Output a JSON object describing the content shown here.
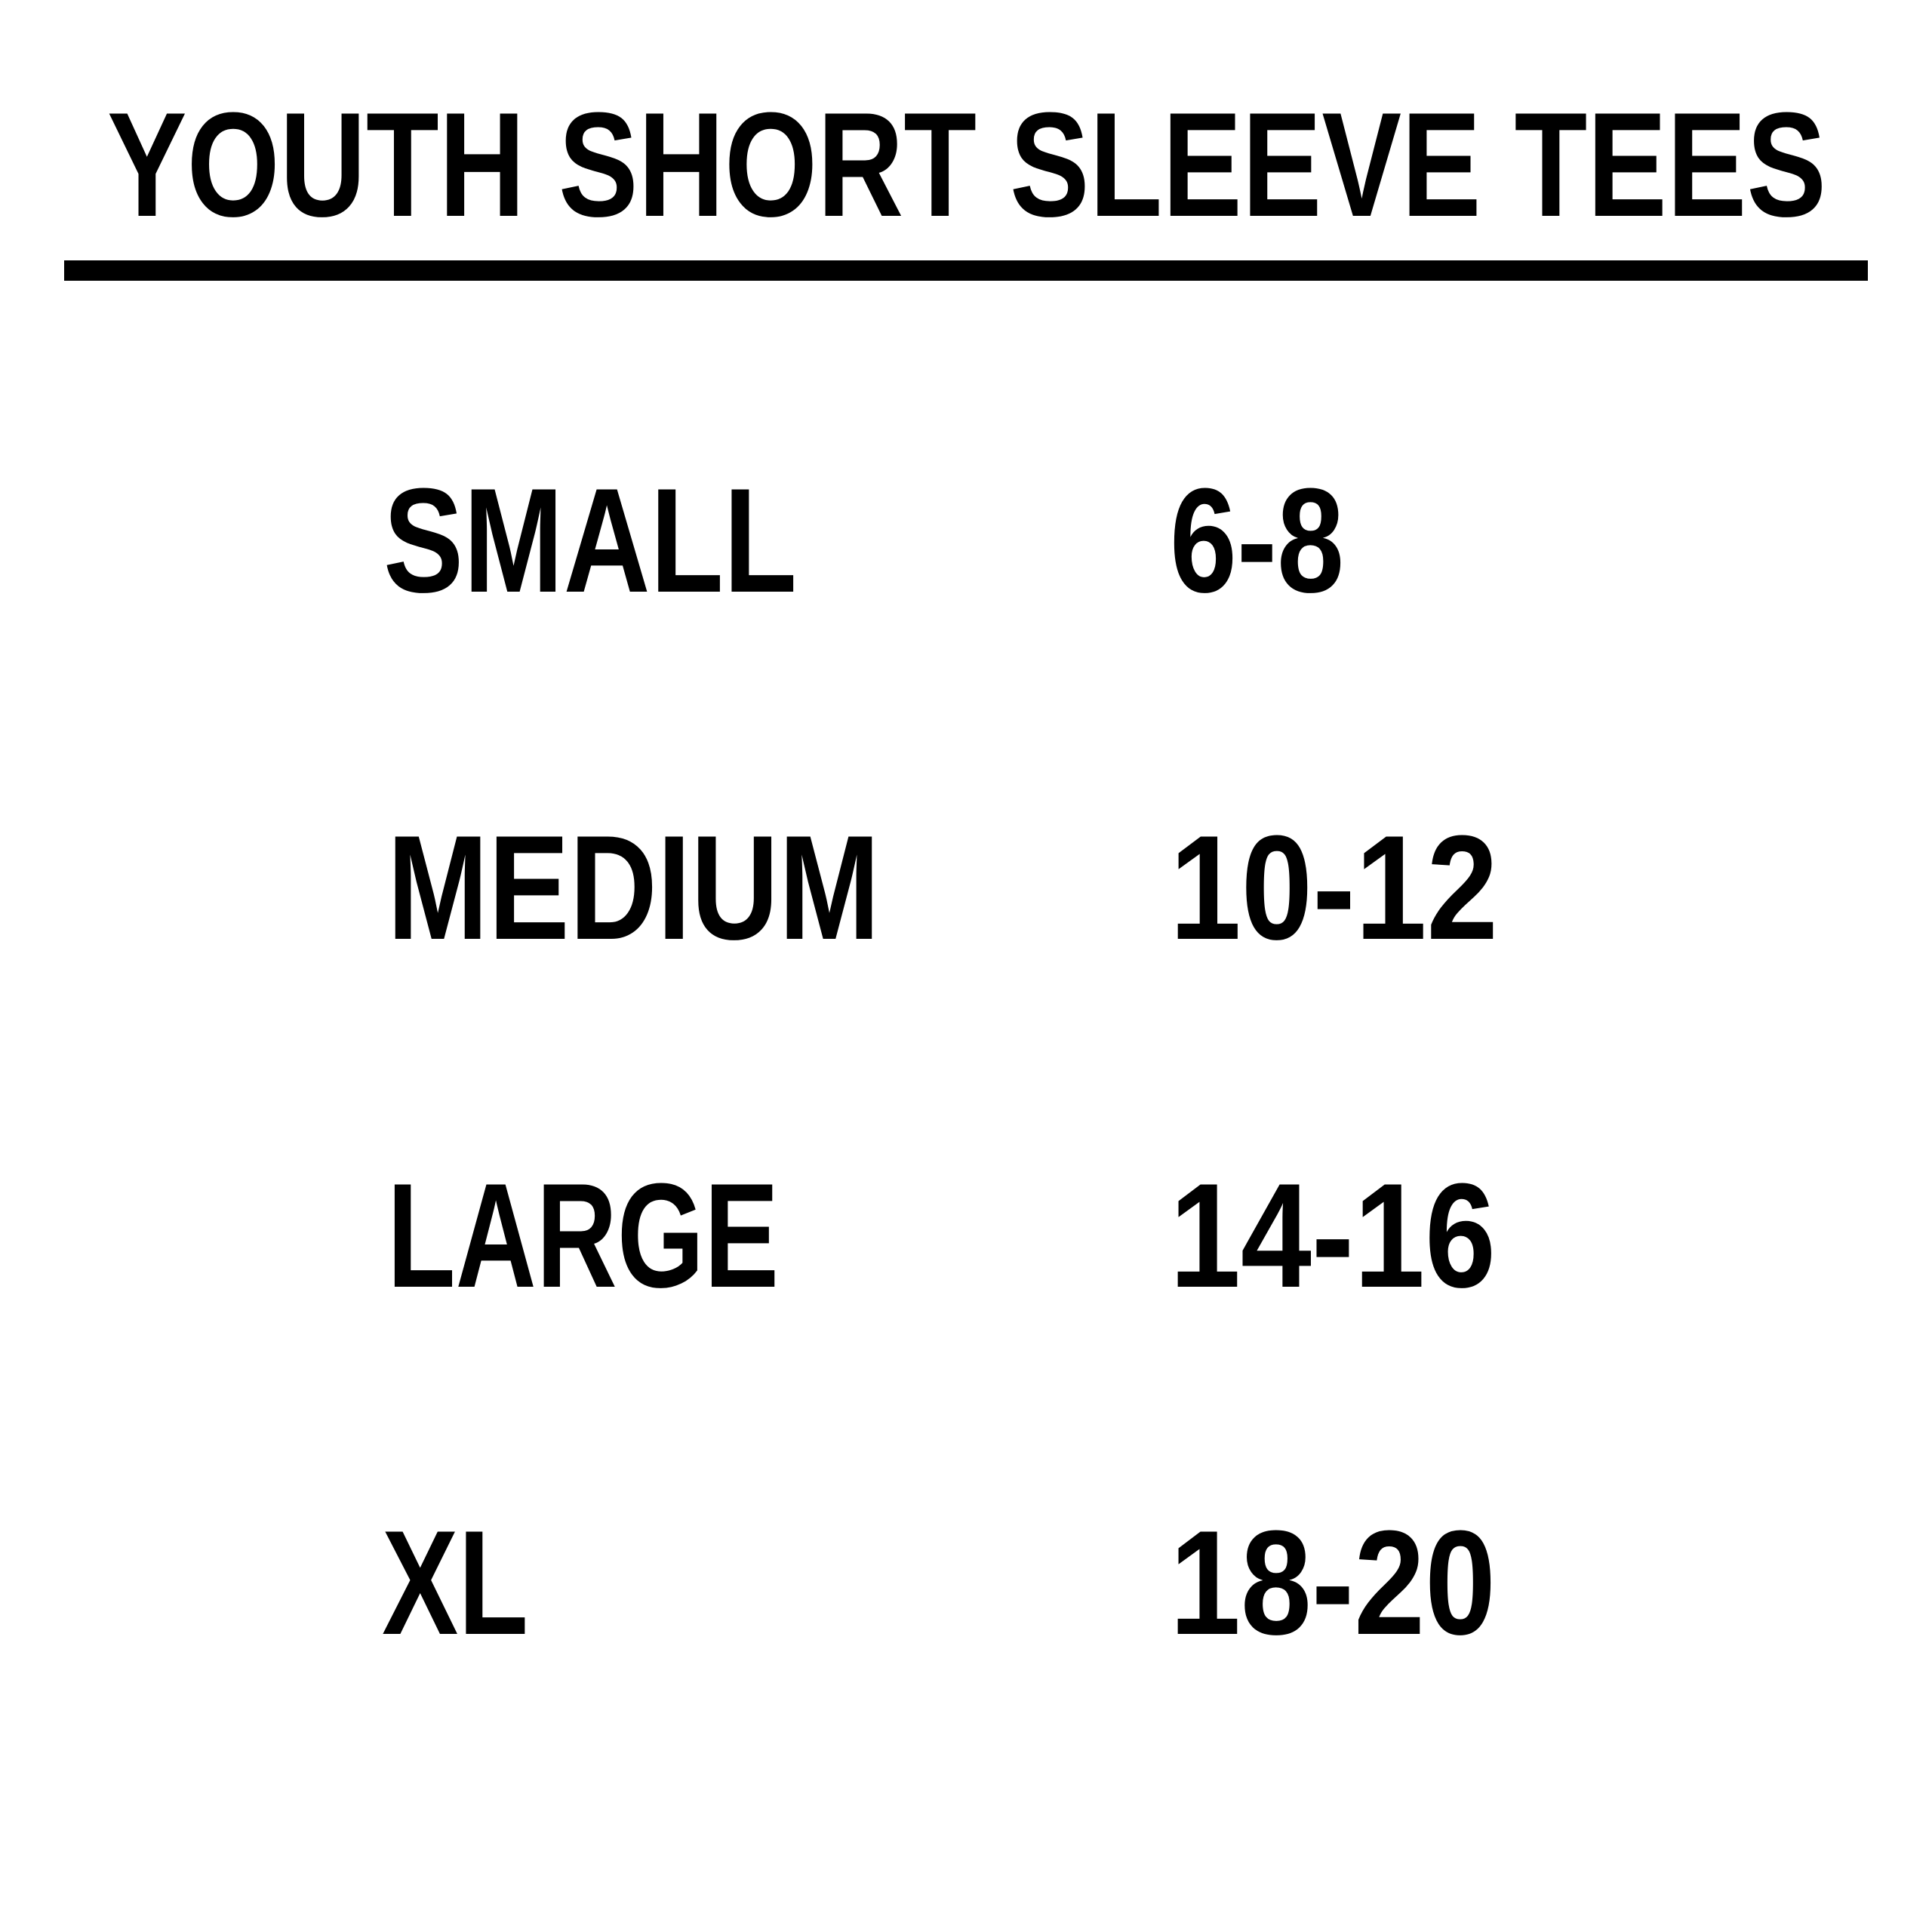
{
  "title": "YOUTH SHORT SLEEVE TEES",
  "colors": {
    "text": "#000000",
    "background": "#ffffff",
    "rule": "#000000"
  },
  "sizes": [
    {
      "label": "SMALL",
      "range": "6-8"
    },
    {
      "label": "MEDIUM",
      "range": "10-12"
    },
    {
      "label": "LARGE",
      "range": "14-16"
    },
    {
      "label": "XL",
      "range": "18-20"
    }
  ]
}
